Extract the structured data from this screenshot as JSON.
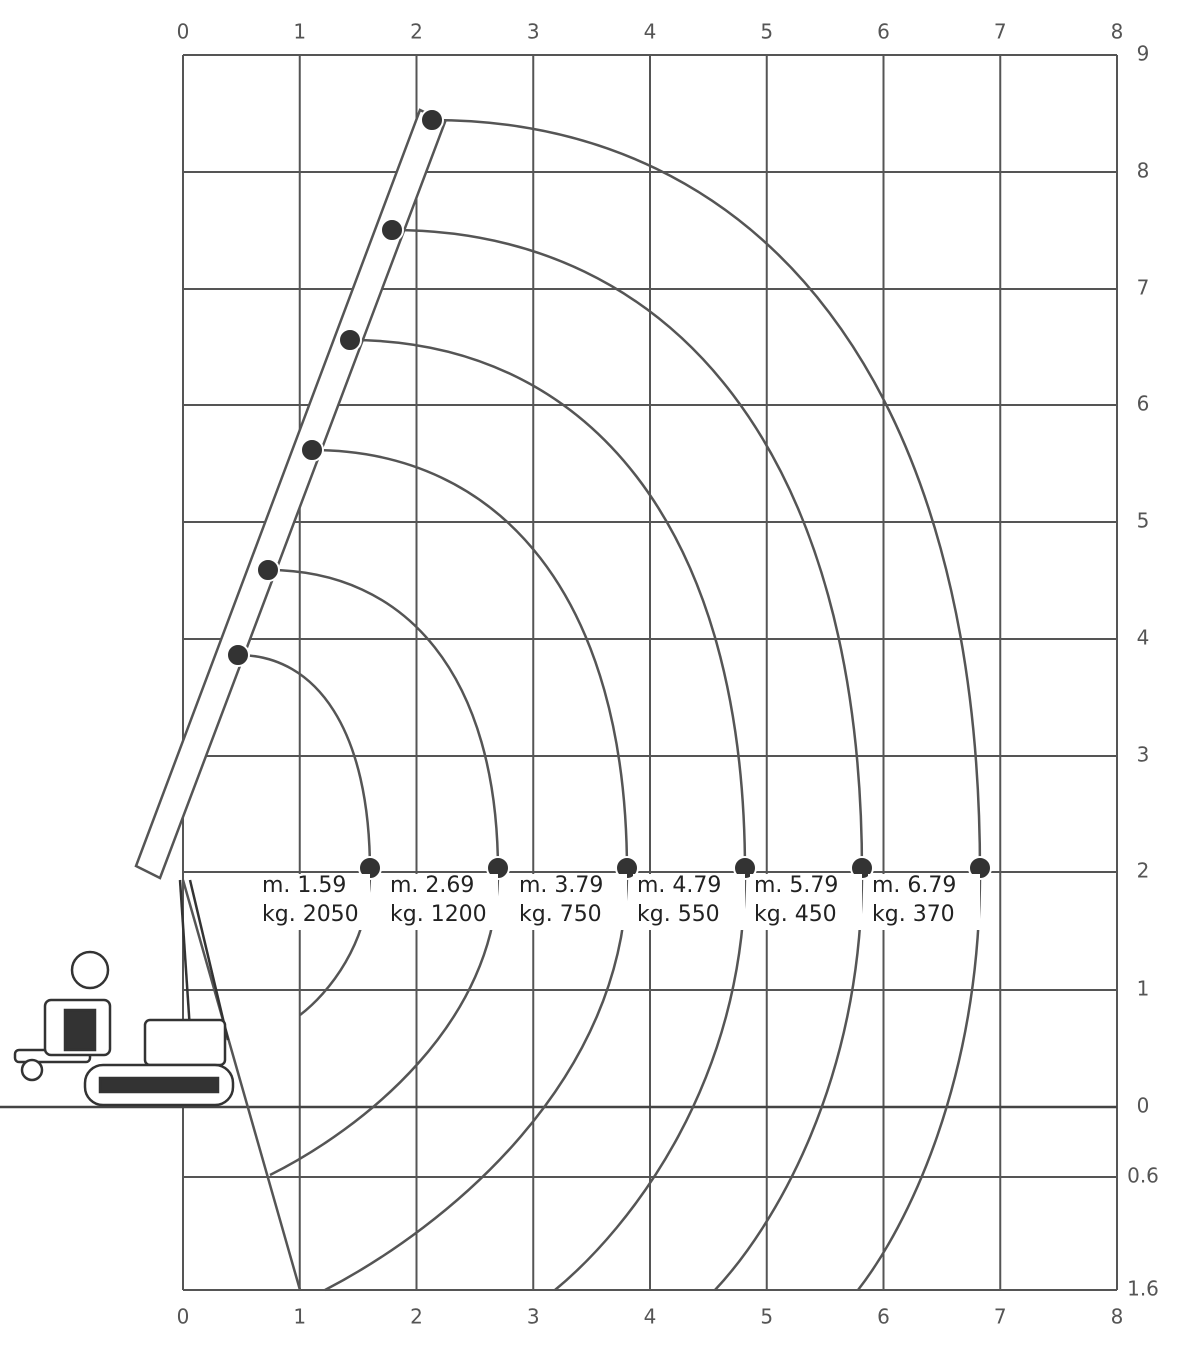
{
  "diagram": {
    "top_labels": [
      "0",
      "1",
      "2",
      "3",
      "4",
      "5",
      "6",
      "7",
      "8"
    ],
    "bottom_labels": [
      "0",
      "1",
      "2",
      "3",
      "4",
      "5",
      "6",
      "7",
      "8"
    ],
    "right_labels": [
      "9",
      "8",
      "7",
      "6",
      "5",
      "4",
      "3",
      "2",
      "1",
      "0",
      "0.6",
      "1.6"
    ],
    "loads": [
      {
        "reach": "m. 1.59",
        "weight": "kg. 2050"
      },
      {
        "reach": "m. 2.69",
        "weight": "kg. 1200"
      },
      {
        "reach": "m. 3.79",
        "weight": "kg. 750"
      },
      {
        "reach": "m. 4.79",
        "weight": "kg. 550"
      },
      {
        "reach": "m. 5.79",
        "weight": "kg. 450"
      },
      {
        "reach": "m. 6.79",
        "weight": "kg. 370"
      }
    ]
  }
}
